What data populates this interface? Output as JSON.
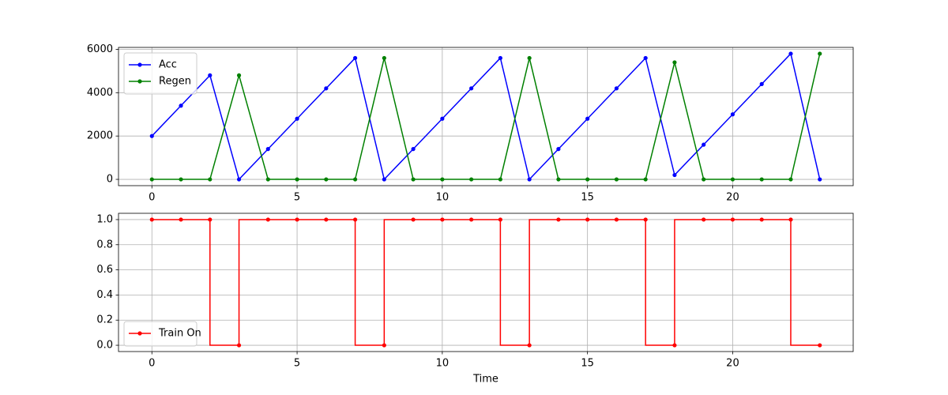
{
  "chart_data": [
    {
      "type": "line",
      "x": [
        0,
        1,
        2,
        3,
        4,
        5,
        6,
        7,
        8,
        9,
        10,
        11,
        12,
        13,
        14,
        15,
        16,
        17,
        18,
        19,
        20,
        21,
        22,
        23
      ],
      "series": [
        {
          "name": "Acc",
          "color": "#0000ff",
          "values": [
            2000,
            3400,
            4800,
            0,
            1400,
            2800,
            4200,
            5600,
            0,
            1400,
            2800,
            4200,
            5600,
            0,
            1400,
            2800,
            4200,
            5600,
            200,
            1600,
            3000,
            4400,
            5800,
            0
          ]
        },
        {
          "name": "Regen",
          "color": "#008000",
          "values": [
            0,
            0,
            0,
            4800,
            0,
            0,
            0,
            0,
            5600,
            0,
            0,
            0,
            0,
            5600,
            0,
            0,
            0,
            0,
            5400,
            0,
            0,
            0,
            0,
            5800
          ]
        }
      ],
      "xlim": [
        -1.15,
        24.15
      ],
      "xticks": [
        0,
        5,
        10,
        15,
        20
      ],
      "ylim": [
        -290,
        6090
      ],
      "yticks": [
        0,
        2000,
        4000,
        6000
      ],
      "grid": true,
      "legend": "upper-left"
    },
    {
      "type": "line",
      "drawstyle": "steps-pre",
      "x": [
        0,
        1,
        2,
        3,
        4,
        5,
        6,
        7,
        8,
        9,
        10,
        11,
        12,
        13,
        14,
        15,
        16,
        17,
        18,
        19,
        20,
        21,
        22,
        23
      ],
      "series": [
        {
          "name": "Train On",
          "color": "#ff0000",
          "values": [
            1,
            1,
            1,
            0,
            1,
            1,
            1,
            1,
            0,
            1,
            1,
            1,
            1,
            0,
            1,
            1,
            1,
            1,
            0,
            1,
            1,
            1,
            1,
            0
          ]
        }
      ],
      "xlabel": "Time",
      "xlim": [
        -1.15,
        24.15
      ],
      "xticks": [
        0,
        5,
        10,
        15,
        20
      ],
      "ylim": [
        -0.05,
        1.05
      ],
      "yticks": [
        {
          "value": 0,
          "label": "0.0"
        },
        0.2,
        0.4,
        0.6,
        0.8,
        {
          "value": 1,
          "label": "1.0"
        }
      ],
      "grid": true,
      "legend": "lower-left"
    }
  ]
}
